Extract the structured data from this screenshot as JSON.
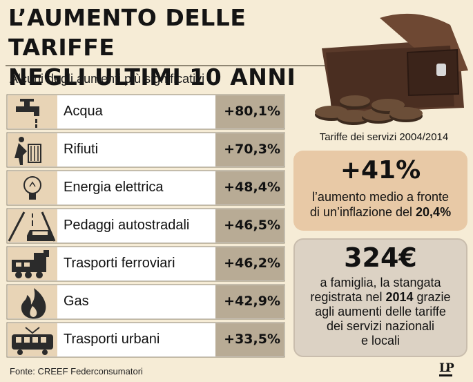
{
  "title_line1": "L’AUMENTO DELLE TARIFFE",
  "title_line2": "NEGLI ULTIMI 10 ANNI",
  "subtitle": "Alcuni degli aumenti più significativi",
  "chart_data": {
    "type": "table",
    "categories": [
      "Acqua",
      "Rifiuti",
      "Energia elettrica",
      "Pedaggi autostradali",
      "Trasporti ferroviari",
      "Gas",
      "Trasporti urbani"
    ],
    "values": [
      80.1,
      70.3,
      48.4,
      46.5,
      46.2,
      42.9,
      33.5
    ],
    "value_labels": [
      "+80,1%",
      "+70,3%",
      "+48,4%",
      "+46,5%",
      "+46,2%",
      "+42,9%",
      "+33,5%"
    ],
    "icons": [
      "tap-icon",
      "trash-bin-icon",
      "lightbulb-icon",
      "highway-car-icon",
      "train-icon",
      "flame-icon",
      "tram-icon"
    ],
    "colors": {
      "row_bg": "#ffffff",
      "icon_bg": "#e8d4b6",
      "value_bg": "#b8ab95",
      "row_border": "#8f8673"
    }
  },
  "sidebar": {
    "wallet_caption": "Tariffe dei servizi 2004/2014",
    "box1": {
      "big": "+41%",
      "line1": "l’aumento medio a fronte",
      "line2_prefix": "di un’inflazione del ",
      "line2_bold": "20,4%"
    },
    "box2": {
      "big": "324€",
      "line1": "a famiglia, la stangata",
      "line2_prefix": "registrata nel ",
      "line2_bold": "2014",
      "line2_suffix": " grazie",
      "line3": "agli aumenti delle tariffe",
      "line4": "dei servizi nazionali",
      "line5": "e locali"
    }
  },
  "source": "Fonte: CREEF Federconsumatori",
  "logo": "LP",
  "colors": {
    "background": "#f6ecd6",
    "box1_bg": "#e8c9a6",
    "box2_bg": "#dcd2c4"
  }
}
